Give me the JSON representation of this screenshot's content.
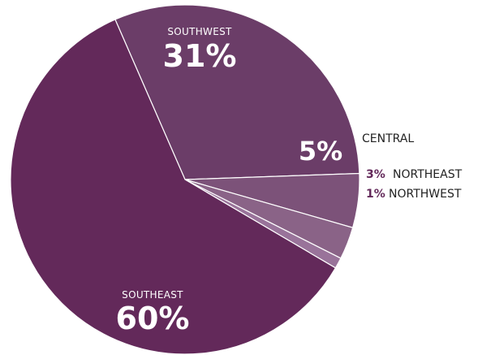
{
  "chart_data": {
    "type": "pie",
    "title": "",
    "slices": [
      {
        "label": "SOUTHWEST",
        "value": 31,
        "display": "31%",
        "color": "#6b3d68"
      },
      {
        "label": "CENTRAL",
        "value": 5,
        "display": "5%",
        "color": "#7c5279"
      },
      {
        "label": "NORTHEAST",
        "value": 3,
        "display": "3%",
        "color": "#8a6387"
      },
      {
        "label": "NORTHWEST",
        "value": 1,
        "display": "1%",
        "color": "#99739a"
      },
      {
        "label": "SOUTHEAST",
        "value": 60,
        "display": "60%",
        "color": "#63295a"
      }
    ],
    "separator_color": "#ffffff",
    "external_pct_color": "#63295a"
  }
}
